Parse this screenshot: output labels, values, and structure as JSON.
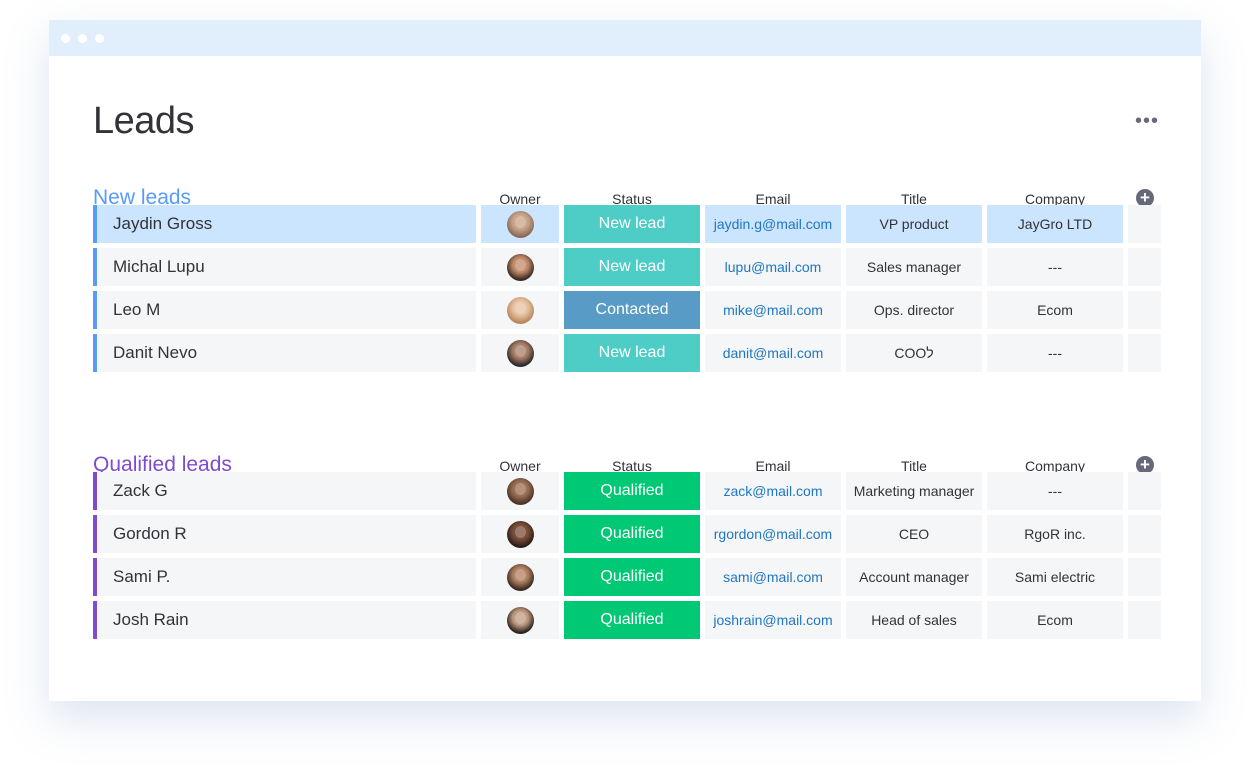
{
  "page": {
    "title": "Leads",
    "more_icon": "ellipsis-icon"
  },
  "colors": {
    "new_lead": "#4eccc6",
    "contacted": "#579bc6",
    "qualified": "#00c875",
    "new_group": "#579bfc",
    "qualified_group": "#7e4bd1",
    "email": "#1f76c2"
  },
  "columns": {
    "owner": "Owner",
    "status": "Status",
    "email": "Email",
    "title": "Title",
    "company": "Company"
  },
  "groups": [
    {
      "title": "New leads",
      "rows": [
        {
          "name": "Jaydin Gross",
          "status": "New lead",
          "email": "jaydin.g@mail.com",
          "title": "VP product",
          "company": "JayGro LTD"
        },
        {
          "name": "Michal Lupu",
          "status": "New lead",
          "email": "lupu@mail.com",
          "title": "Sales manager",
          "company": "---"
        },
        {
          "name": "Leo M",
          "status": "Contacted",
          "email": "mike@mail.com",
          "title": "Ops. director",
          "company": "Ecom"
        },
        {
          "name": "Danit Nevo",
          "status": "New lead",
          "email": "danit@mail.com",
          "title": "COOל",
          "company": "---"
        }
      ]
    },
    {
      "title": "Qualified leads",
      "rows": [
        {
          "name": "Zack G",
          "status": "Qualified",
          "email": "zack@mail.com",
          "title": "Marketing manager",
          "company": "---"
        },
        {
          "name": "Gordon R",
          "status": "Qualified",
          "email": "rgordon@mail.com",
          "title": "CEO",
          "company": "RgoR inc."
        },
        {
          "name": "Sami P.",
          "status": "Qualified",
          "email": "sami@mail.com",
          "title": "Account manager",
          "company": "Sami electric"
        },
        {
          "name": "Josh Rain",
          "status": "Qualified",
          "email": "joshrain@mail.com",
          "title": "Head of sales",
          "company": "Ecom"
        }
      ]
    }
  ]
}
